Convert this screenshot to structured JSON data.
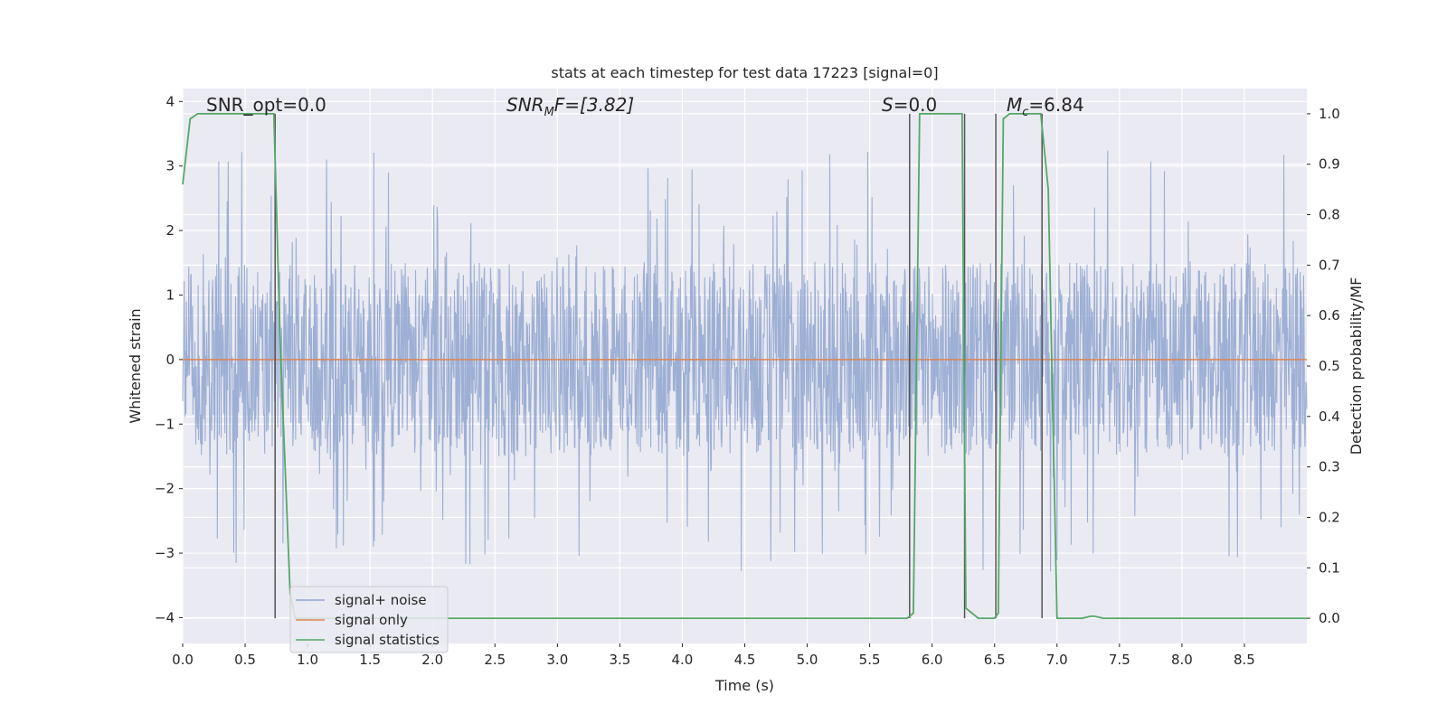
{
  "chart_data": {
    "type": "line",
    "title": "stats at each timestep for test data 17223 [signal=0]",
    "xlabel": "Time (s)",
    "ylabel": "Whitened strain",
    "y2label": "Detection probability/MF",
    "xlim": [
      0.0,
      9.0
    ],
    "ylim": [
      -4.4,
      4.2
    ],
    "y2lim": [
      -0.05,
      1.05
    ],
    "xticks": [
      "0.0",
      "0.5",
      "1.0",
      "1.5",
      "2.0",
      "2.5",
      "3.0",
      "3.5",
      "4.0",
      "4.5",
      "5.0",
      "5.5",
      "6.0",
      "6.5",
      "7.0",
      "7.5",
      "8.0",
      "8.5"
    ],
    "yticks": [
      "−4",
      "−3",
      "−2",
      "−1",
      "0",
      "1",
      "2",
      "3",
      "4"
    ],
    "y2ticks": [
      "0.0",
      "0.1",
      "0.2",
      "0.3",
      "0.4",
      "0.5",
      "0.6",
      "0.7",
      "0.8",
      "0.9",
      "1.0"
    ],
    "grid": true,
    "legend_position": "lower-left",
    "annotations": {
      "snr_opt": "SNR_opt=0.0",
      "snr_mf_base": "SNR",
      "snr_mf_sub": "M",
      "snr_mf_rest": "F=[3.82]",
      "s_label": "S",
      "s_value": "=0.0",
      "mc_base": "M",
      "mc_sub": "c",
      "mc_value": "=6.84"
    },
    "series": [
      {
        "name": "signal+ noise",
        "color": "#8fa5cf",
        "description": "whitened noise strain, roughly within ±1.5 with spikes up to about ±3.8",
        "envelope_low": -1.5,
        "envelope_high": 1.5
      },
      {
        "name": "signal only",
        "color": "#dd8452",
        "x": [
          0.0,
          9.0
        ],
        "y": [
          0.0,
          0.0
        ]
      },
      {
        "name": "signal statistics",
        "color": "#55a868",
        "axis": "right",
        "x": [
          0.0,
          0.06,
          0.12,
          0.73,
          0.78,
          0.86,
          0.9,
          5.75,
          5.8,
          5.85,
          5.9,
          6.24,
          6.27,
          6.32,
          6.37,
          6.5,
          6.53,
          6.57,
          6.62,
          6.87,
          6.93,
          7.0,
          7.05,
          7.2,
          7.27,
          7.3,
          7.37,
          8.5,
          9.0
        ],
        "y": [
          0.86,
          0.99,
          1.0,
          1.0,
          0.55,
          0.05,
          0.0,
          0.0,
          0.0,
          0.01,
          1.0,
          1.0,
          0.02,
          0.01,
          0.0,
          0.0,
          0.01,
          0.99,
          1.0,
          1.0,
          0.85,
          0.0,
          0.0,
          0.0,
          0.004,
          0.004,
          0.0,
          0.0,
          0.0
        ]
      }
    ],
    "vertical_markers": [
      0.74,
      5.82,
      6.26,
      6.51,
      6.88
    ]
  }
}
